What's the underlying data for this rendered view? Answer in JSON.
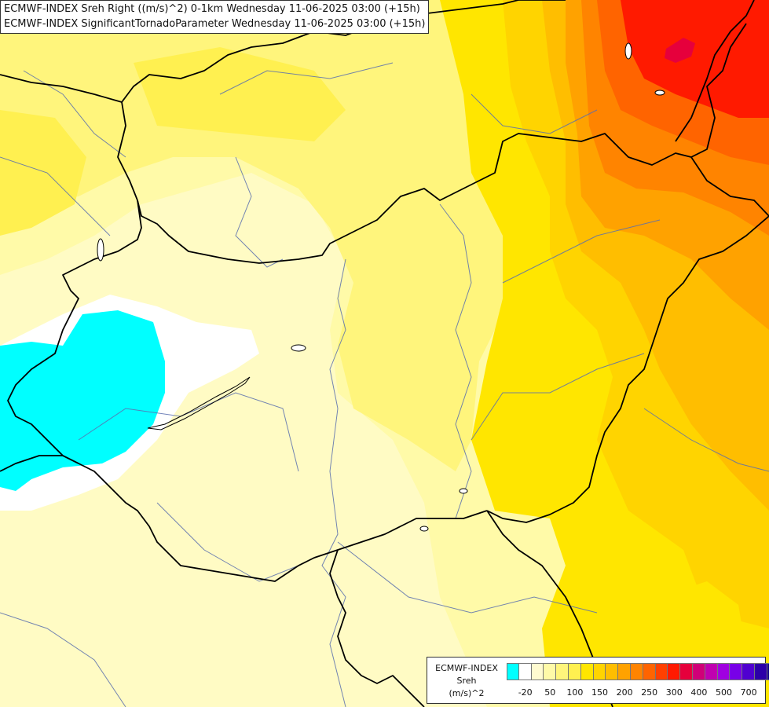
{
  "titles": [
    "ECMWF-INDEX Sreh Right ((m/s)^2) 0-1km Wednesday 11-06-2025 03:00 (+15h)",
    "ECMWF-INDEX SignificantTornadoParameter Wednesday 11-06-2025 03:00 (+15h)"
  ],
  "legend": {
    "label_lines": [
      "ECMWF-INDEX",
      "Sreh",
      "(m/s)^2"
    ],
    "tick_labels": [
      "-20",
      "50",
      "100",
      "150",
      "200",
      "250",
      "300",
      "400",
      "500",
      "700"
    ],
    "colors": [
      "#00ffff",
      "#ffffff",
      "#fffbd0",
      "#fffaa8",
      "#fff57c",
      "#fff050",
      "#ffe600",
      "#ffd400",
      "#ffbe00",
      "#ffa200",
      "#ff8400",
      "#ff6400",
      "#ff4000",
      "#ff1a00",
      "#e6003c",
      "#d00078",
      "#c000b0",
      "#a000e0",
      "#7800e8",
      "#5000d0",
      "#2c00a8",
      "#10008a"
    ]
  },
  "map": {
    "field": "Storm-relative helicity 0-1km",
    "colors": {
      "background": "#fffbc4",
      "pale": "#fffaa8",
      "light_yellow": "#fff57c",
      "yellow": "#fff050",
      "gold": "#ffe600",
      "amber": "#ffd400",
      "orange": "#ffbe00",
      "dark_orange": "#ffa200",
      "red_orange": "#ff8400",
      "orange_red": "#ff6400",
      "red": "#ff1a00",
      "crimson": "#e6003c",
      "negative": "#00ffff",
      "neutral": "#ffffff",
      "border": "#000000",
      "river": "#5a6fae"
    }
  }
}
